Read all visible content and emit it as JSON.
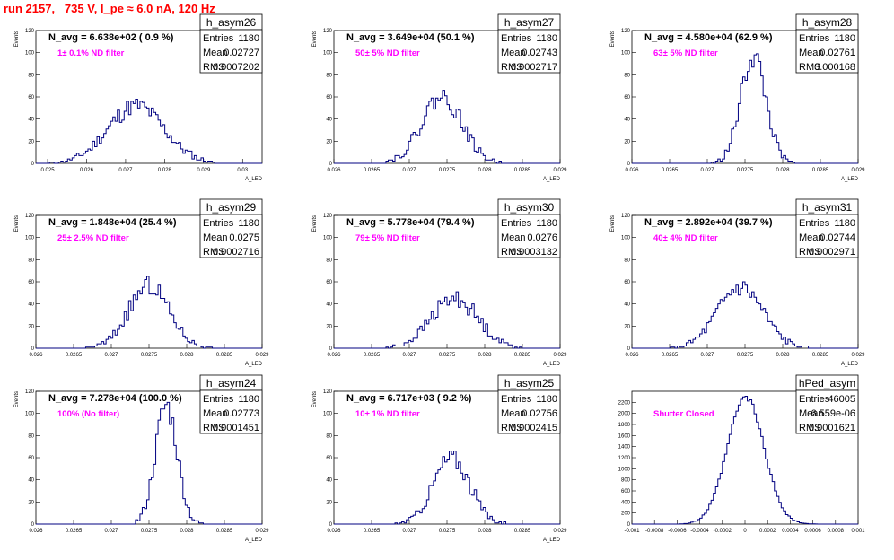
{
  "canvas_title": "run 2157,   735 V, I_pe ≈ 6.0 nA, 120 Hz",
  "chart_data": [
    {
      "type": "histogram",
      "name": "h_asym26",
      "nlabel": "N_avg = 6.638e+02 ( 0.9 %)",
      "filter": "1± 0.1% ND filter",
      "stats": {
        "entries": "1180",
        "mean": "0.02727",
        "rms": "0.0007202"
      },
      "xlim": [
        0.0247,
        0.0305
      ],
      "ylim": [
        0,
        120
      ],
      "yticks": [
        0,
        20,
        40,
        60,
        80,
        100,
        120
      ],
      "xticks": [
        0.025,
        0.026,
        0.027,
        0.028,
        0.029,
        0.03
      ],
      "xtick_labels": [
        "0.025",
        "0.026",
        "0.027",
        "0.028",
        "0.029",
        "0.03"
      ],
      "xlabel": "A_LED",
      "ylabel": "Events",
      "nbins": 100,
      "mu": 0.02727,
      "sigma": 0.00072,
      "peak": 52,
      "seed": 11
    },
    {
      "type": "histogram",
      "name": "h_asym27",
      "nlabel": "N_avg = 3.649e+04 (50.1 %)",
      "filter": "50± 5% ND filter",
      "stats": {
        "entries": "1180",
        "mean": "0.02743",
        "rms": "0.0002717"
      },
      "xlim": [
        0.026,
        0.029
      ],
      "ylim": [
        0,
        120
      ],
      "yticks": [
        0,
        20,
        40,
        60,
        80,
        100,
        120
      ],
      "xticks": [
        0.026,
        0.0265,
        0.027,
        0.0275,
        0.028,
        0.0285,
        0.029
      ],
      "xtick_labels": [
        "0.026",
        "0.0265",
        "0.027",
        "0.0275",
        "0.028",
        "0.0285",
        "0.029"
      ],
      "xlabel": "A_LED",
      "ylabel": "Events",
      "nbins": 100,
      "mu": 0.02743,
      "sigma": 0.00027,
      "peak": 60,
      "seed": 22
    },
    {
      "type": "histogram",
      "name": "h_asym28",
      "nlabel": "N_avg = 4.580e+04 (62.9 %)",
      "filter": "63± 5% ND filter",
      "stats": {
        "entries": "1180",
        "mean": "0.02761",
        "rms": "0.000168"
      },
      "xlim": [
        0.026,
        0.029
      ],
      "ylim": [
        0,
        120
      ],
      "yticks": [
        0,
        20,
        40,
        60,
        80,
        100,
        120
      ],
      "xticks": [
        0.026,
        0.0265,
        0.027,
        0.0275,
        0.028,
        0.0285,
        0.029
      ],
      "xtick_labels": [
        "0.026",
        "0.0265",
        "0.027",
        "0.0275",
        "0.028",
        "0.0285",
        "0.029"
      ],
      "xlabel": "A_LED",
      "ylabel": "Events",
      "nbins": 100,
      "mu": 0.02761,
      "sigma": 0.000168,
      "peak": 97,
      "seed": 33
    },
    {
      "type": "histogram",
      "name": "h_asym29",
      "nlabel": "N_avg = 1.848e+04 (25.4 %)",
      "filter": "25± 2.5% ND filter",
      "stats": {
        "entries": "1180",
        "mean": "0.0275",
        "rms": "0.0002716"
      },
      "xlim": [
        0.026,
        0.029
      ],
      "ylim": [
        0,
        120
      ],
      "yticks": [
        0,
        20,
        40,
        60,
        80,
        100,
        120
      ],
      "xticks": [
        0.026,
        0.0265,
        0.027,
        0.0275,
        0.028,
        0.0285,
        0.029
      ],
      "xtick_labels": [
        "0.026",
        "0.0265",
        "0.027",
        "0.0275",
        "0.028",
        "0.0285",
        "0.029"
      ],
      "xlabel": "A_LED",
      "ylabel": "Events",
      "nbins": 100,
      "mu": 0.0275,
      "sigma": 0.00027,
      "peak": 56,
      "seed": 44
    },
    {
      "type": "histogram",
      "name": "h_asym30",
      "nlabel": "N_avg = 5.778e+04 (79.4 %)",
      "filter": "79± 5% ND filter",
      "stats": {
        "entries": "1180",
        "mean": "0.0276",
        "rms": "0.0003132"
      },
      "xlim": [
        0.026,
        0.029
      ],
      "ylim": [
        0,
        120
      ],
      "yticks": [
        0,
        20,
        40,
        60,
        80,
        100,
        120
      ],
      "xticks": [
        0.026,
        0.0265,
        0.027,
        0.0275,
        0.028,
        0.0285,
        0.029
      ],
      "xtick_labels": [
        "0.026",
        "0.0265",
        "0.027",
        "0.0275",
        "0.028",
        "0.0285",
        "0.029"
      ],
      "xlabel": "A_LED",
      "ylabel": "Events",
      "nbins": 100,
      "mu": 0.0276,
      "sigma": 0.00031,
      "peak": 45,
      "seed": 55
    },
    {
      "type": "histogram",
      "name": "h_asym31",
      "nlabel": "N_avg = 2.892e+04 (39.7 %)",
      "filter": "40± 4% ND filter",
      "stats": {
        "entries": "1180",
        "mean": "0.02744",
        "rms": "0.0002971"
      },
      "xlim": [
        0.026,
        0.029
      ],
      "ylim": [
        0,
        120
      ],
      "yticks": [
        0,
        20,
        40,
        60,
        80,
        100,
        120
      ],
      "xticks": [
        0.026,
        0.0265,
        0.027,
        0.0275,
        0.028,
        0.0285,
        0.029
      ],
      "xtick_labels": [
        "0.026",
        "0.0265",
        "0.027",
        "0.0275",
        "0.028",
        "0.0285",
        "0.029"
      ],
      "xlabel": "A_LED",
      "ylabel": "Events",
      "nbins": 100,
      "mu": 0.02744,
      "sigma": 0.0003,
      "peak": 55,
      "seed": 66
    },
    {
      "type": "histogram",
      "name": "h_asym24",
      "nlabel": "N_avg = 7.278e+04 (100.0 %)",
      "filter": "100% (No filter)",
      "stats": {
        "entries": "1180",
        "mean": "0.02773",
        "rms": "0.0001451"
      },
      "xlim": [
        0.026,
        0.029
      ],
      "ylim": [
        0,
        120
      ],
      "yticks": [
        0,
        20,
        40,
        60,
        80,
        100,
        120
      ],
      "xticks": [
        0.026,
        0.0265,
        0.027,
        0.0275,
        0.028,
        0.0285,
        0.029
      ],
      "xtick_labels": [
        "0.026",
        "0.0265",
        "0.027",
        "0.0275",
        "0.028",
        "0.0285",
        "0.029"
      ],
      "xlabel": "A_LED",
      "ylabel": "Events",
      "nbins": 100,
      "mu": 0.02773,
      "sigma": 0.000145,
      "peak": 107,
      "seed": 77
    },
    {
      "type": "histogram",
      "name": "h_asym25",
      "nlabel": "N_avg = 6.717e+03 ( 9.2 %)",
      "filter": "10± 1% ND filter",
      "stats": {
        "entries": "1180",
        "mean": "0.02756",
        "rms": "0.0002415"
      },
      "xlim": [
        0.026,
        0.029
      ],
      "ylim": [
        0,
        120
      ],
      "yticks": [
        0,
        20,
        40,
        60,
        80,
        100,
        120
      ],
      "xticks": [
        0.026,
        0.0265,
        0.027,
        0.0275,
        0.028,
        0.0285,
        0.029
      ],
      "xtick_labels": [
        "0.026",
        "0.0265",
        "0.027",
        "0.0275",
        "0.028",
        "0.0285",
        "0.029"
      ],
      "xlabel": "A_LED",
      "ylabel": "Events",
      "nbins": 100,
      "mu": 0.02756,
      "sigma": 0.00024,
      "peak": 60,
      "seed": 88
    },
    {
      "type": "histogram",
      "name": "hPed_asym",
      "nlabel": "",
      "filter": "Shutter Closed",
      "stats": {
        "entries": "46005",
        "mean": "6.559e-06",
        "rms": "0.0001621"
      },
      "xlim": [
        -0.001,
        0.001
      ],
      "ylim": [
        0,
        2400
      ],
      "yticks": [
        0,
        200,
        400,
        600,
        800,
        1000,
        1200,
        1400,
        1600,
        1800,
        2000,
        2200
      ],
      "xticks": [
        -0.001,
        -0.0008,
        -0.0006,
        -0.0004,
        -0.0002,
        0,
        0.0002,
        0.0004,
        0.0006,
        0.0008,
        0.001
      ],
      "xtick_labels": [
        "-0.001",
        "-0.0008",
        "-0.0006",
        "-0.0004",
        "-0.0002",
        "0",
        "0.0002",
        "0.0004",
        "0.0006",
        "0.0008",
        "0.001"
      ],
      "xlabel": "",
      "ylabel": "",
      "nbins": 100,
      "mu": 6.6e-06,
      "sigma": 0.000162,
      "peak": 2290,
      "seed": 99
    }
  ]
}
